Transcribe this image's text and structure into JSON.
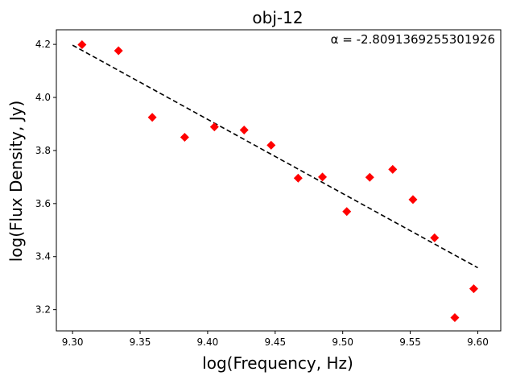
{
  "chart_data": {
    "type": "scatter",
    "title": "obj-12",
    "xlabel": "log(Frequency, Hz)",
    "ylabel": "log(Flux Density, Jy)",
    "annotation": "α  =  -2.8091369255301926",
    "xlim": [
      9.288,
      9.617
    ],
    "ylim": [
      3.12,
      4.255
    ],
    "xticks": [
      9.3,
      9.35,
      9.4,
      9.45,
      9.5,
      9.55,
      9.6
    ],
    "xtick_labels": [
      "9.30",
      "9.35",
      "9.40",
      "9.45",
      "9.50",
      "9.55",
      "9.60"
    ],
    "yticks": [
      3.2,
      3.4,
      3.6,
      3.8,
      4.0,
      4.2
    ],
    "ytick_labels": [
      "3.2",
      "3.4",
      "3.6",
      "3.8",
      "4.0",
      "4.2"
    ],
    "grid": false,
    "marker_color": "#ff0000",
    "fit_color": "#000000",
    "points": [
      {
        "x": 9.307,
        "y": 4.199
      },
      {
        "x": 9.334,
        "y": 4.176
      },
      {
        "x": 9.359,
        "y": 3.925
      },
      {
        "x": 9.383,
        "y": 3.85
      },
      {
        "x": 9.405,
        "y": 3.889
      },
      {
        "x": 9.427,
        "y": 3.877
      },
      {
        "x": 9.447,
        "y": 3.82
      },
      {
        "x": 9.467,
        "y": 3.696
      },
      {
        "x": 9.485,
        "y": 3.7
      },
      {
        "x": 9.503,
        "y": 3.57
      },
      {
        "x": 9.52,
        "y": 3.699
      },
      {
        "x": 9.537,
        "y": 3.729
      },
      {
        "x": 9.552,
        "y": 3.615
      },
      {
        "x": 9.568,
        "y": 3.471
      },
      {
        "x": 9.583,
        "y": 3.17
      },
      {
        "x": 9.597,
        "y": 3.279
      }
    ],
    "fit_line": {
      "x": [
        9.3,
        9.6
      ],
      "y": [
        4.197,
        3.358
      ],
      "style": "dashed"
    }
  }
}
